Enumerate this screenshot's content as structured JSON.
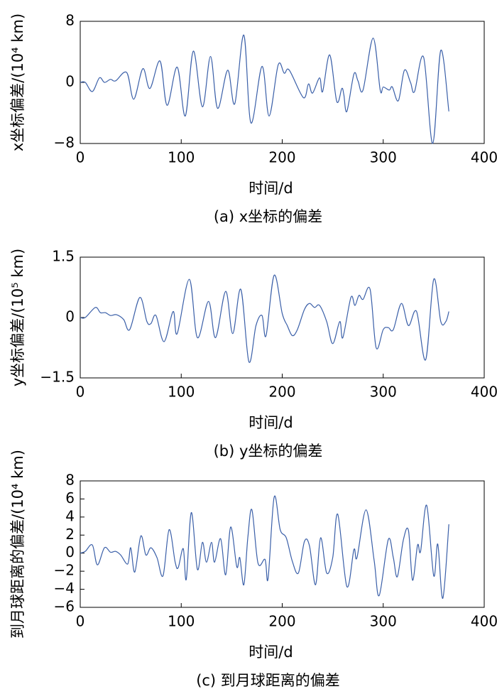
{
  "chart_data": [
    {
      "type": "line",
      "ylabel": "x坐标偏差/(10⁴ km)",
      "xlabel": "时间/d",
      "caption": "(a) x坐标的偏差",
      "color": "#3a5fa8",
      "xlim": [
        0,
        400
      ],
      "xticks": [
        0,
        100,
        200,
        300,
        400
      ],
      "ylim": [
        -8,
        8
      ],
      "yticks": [
        {
          "value": -8,
          "label": "−8"
        },
        0,
        8
      ],
      "x": [
        0,
        5,
        12,
        19,
        24,
        30,
        35,
        46,
        53,
        62,
        69,
        79,
        86,
        96,
        104,
        112,
        121,
        129,
        136,
        146,
        153,
        162,
        169,
        180,
        187,
        196,
        202,
        207,
        221,
        226,
        230,
        237,
        240,
        247,
        254,
        259,
        261,
        264,
        271,
        275,
        280,
        290,
        297,
        300,
        306,
        309,
        315,
        321,
        327,
        331,
        340,
        349,
        357,
        365
      ],
      "values": [
        0,
        0,
        -1.2,
        0.6,
        0,
        0.4,
        0.2,
        1.3,
        -2.2,
        1.8,
        -0.8,
        2.8,
        -3,
        2,
        -4.4,
        4.1,
        -3.2,
        3.4,
        -3.4,
        1.6,
        -2.8,
        6.2,
        -5.3,
        2.1,
        -4.4,
        2.3,
        1.2,
        1.6,
        -2,
        -0.2,
        -1.4,
        0.6,
        -1.2,
        3.6,
        -2.5,
        -0.8,
        -1.6,
        -3.8,
        1.1,
        0.2,
        -1,
        5.8,
        -1,
        -0.6,
        -1,
        -0.6,
        -2.4,
        1.6,
        0,
        -1.2,
        3.3,
        -8,
        4.2,
        -3.8
      ]
    },
    {
      "type": "line",
      "ylabel": "y坐标偏差/(10⁵ km)",
      "xlabel": "时间/d",
      "caption": "(b) y坐标的偏差",
      "color": "#3a5fa8",
      "xlim": [
        0,
        400
      ],
      "xticks": [
        0,
        100,
        200,
        300,
        400
      ],
      "ylim": [
        -1.5,
        1.5
      ],
      "yticks": [
        {
          "value": -1.5,
          "label": "−1.5"
        },
        0,
        1.5
      ],
      "x": [
        0,
        5,
        15,
        20,
        25,
        30,
        36,
        43,
        49,
        59,
        66,
        70,
        75,
        83,
        92,
        96,
        108,
        116,
        127,
        134,
        144,
        151,
        159,
        167,
        174,
        180,
        184,
        192,
        200,
        205,
        210,
        215,
        222,
        227,
        232,
        237,
        244,
        250,
        257,
        260,
        268,
        272,
        276,
        280,
        287,
        293,
        300,
        305,
        310,
        318,
        325,
        333,
        342,
        350,
        357,
        362,
        365
      ],
      "values": [
        0,
        0,
        0.25,
        0.12,
        0.12,
        0.05,
        0.07,
        -0.05,
        -0.3,
        0.5,
        -0.1,
        -0.15,
        0.05,
        -0.6,
        0.15,
        -0.4,
        0.95,
        -0.5,
        0.4,
        -0.5,
        0.65,
        -0.4,
        0.7,
        -1.1,
        -0.2,
        0.05,
        -0.45,
        1.05,
        0.1,
        -0.2,
        -0.45,
        -0.3,
        0.2,
        0.35,
        0.25,
        0.3,
        -0.1,
        -0.65,
        -0.1,
        -0.5,
        0.5,
        0.3,
        0.55,
        0.45,
        0.7,
        -0.75,
        -0.3,
        -0.25,
        -0.3,
        0.35,
        -0.2,
        0.15,
        -1.05,
        0.95,
        -0.1,
        -0.1,
        0.15
      ]
    },
    {
      "type": "line",
      "ylabel": "到月球距离的偏差/(10⁴ km)",
      "xlabel": "时间/d",
      "caption": "(c) 到月球距离的偏差",
      "color": "#3a5fa8",
      "xlim": [
        0,
        400
      ],
      "xticks": [
        0,
        100,
        200,
        300,
        400
      ],
      "ylim": [
        -6,
        8
      ],
      "yticks": [
        {
          "value": -6,
          "label": "−6"
        },
        {
          "value": -4,
          "label": "−4"
        },
        {
          "value": -2,
          "label": "−2"
        },
        0,
        2,
        4,
        6,
        8
      ],
      "x": [
        0,
        5,
        12,
        17,
        24,
        30,
        35,
        40,
        47,
        50,
        54,
        60,
        65,
        70,
        76,
        82,
        88,
        94,
        97,
        102,
        105,
        110,
        116,
        121,
        125,
        130,
        133,
        139,
        144,
        149,
        155,
        158,
        162,
        166,
        170,
        176,
        183,
        186,
        192,
        198,
        204,
        210,
        216,
        222,
        227,
        233,
        238,
        244,
        250,
        255,
        264,
        271,
        274,
        283,
        291,
        296,
        305,
        310,
        314,
        320,
        325,
        329,
        334,
        337,
        343,
        350,
        354,
        359,
        365
      ],
      "values": [
        0,
        0.2,
        0.9,
        -1.3,
        0.6,
        0.1,
        0.2,
        -0.2,
        -1.2,
        0.6,
        -2.1,
        1.9,
        -0.2,
        0.6,
        -0.5,
        -2.5,
        2.6,
        -1,
        -1.6,
        0.5,
        -2.9,
        4.5,
        -1.8,
        1.2,
        -1,
        1.2,
        -1,
        1.6,
        -2.4,
        2.9,
        -1.5,
        -0.5,
        -3.5,
        1.8,
        4.8,
        -1.1,
        -0.7,
        -2.8,
        6.2,
        2.6,
        1.7,
        -0.9,
        -2.2,
        1.3,
        0.8,
        -3.5,
        1.7,
        -2.2,
        -0.5,
        4.3,
        -3.7,
        0.4,
        -0.5,
        4.8,
        -0.8,
        -4.7,
        1.5,
        -0.5,
        -2.6,
        1.5,
        2.5,
        -3,
        0.9,
        0.2,
        5.3,
        -2.5,
        1,
        -5,
        3.2
      ]
    }
  ]
}
